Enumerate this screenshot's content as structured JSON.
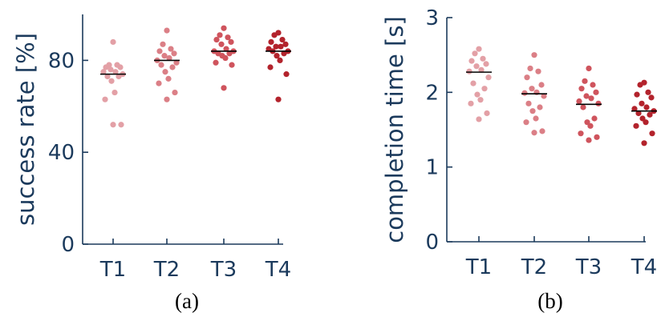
{
  "colors": {
    "axis": "#1b3a5c",
    "median": "#000000",
    "series": [
      "#e3a0a6",
      "#db7f86",
      "#cf545d",
      "#b3232c"
    ]
  },
  "chart_data": [
    {
      "type": "scatter",
      "panel_label": "(a)",
      "categories": [
        "T1",
        "T2",
        "T3",
        "T4"
      ],
      "ylabel": "success rate [%]",
      "ylim": [
        0,
        100
      ],
      "yticks": [
        0,
        40,
        80
      ],
      "grid": false,
      "medians": [
        74,
        80,
        84,
        84
      ],
      "series": [
        {
          "category": "T1",
          "values": [
            88,
            78,
            78,
            77,
            77,
            76,
            75,
            75,
            74,
            73,
            73,
            71,
            66,
            63,
            52,
            52
          ]
        },
        {
          "category": "T2",
          "values": [
            93,
            87,
            85,
            84,
            83,
            82,
            81,
            80,
            79,
            78,
            77,
            75,
            72,
            70,
            66,
            63
          ]
        },
        {
          "category": "T3",
          "values": [
            94,
            91,
            90,
            89,
            88,
            87,
            85,
            84,
            84,
            83,
            83,
            82,
            81,
            79,
            78,
            68
          ]
        },
        {
          "category": "T4",
          "values": [
            92,
            91,
            89,
            88,
            87,
            86,
            86,
            85,
            84,
            84,
            83,
            82,
            80,
            77,
            74,
            63
          ]
        }
      ]
    },
    {
      "type": "scatter",
      "panel_label": "(b)",
      "categories": [
        "T1",
        "T2",
        "T3",
        "T4"
      ],
      "ylabel": "completion time [s]",
      "ylim": [
        0,
        3
      ],
      "yticks": [
        0,
        1,
        2,
        3
      ],
      "grid": false,
      "medians": [
        2.27,
        1.98,
        1.84,
        1.75
      ],
      "series": [
        {
          "category": "T1",
          "values": [
            2.58,
            2.52,
            2.45,
            2.42,
            2.38,
            2.35,
            2.3,
            2.28,
            2.2,
            2.12,
            2.05,
            1.97,
            1.9,
            1.85,
            1.72,
            1.64
          ]
        },
        {
          "category": "T2",
          "values": [
            2.5,
            2.32,
            2.28,
            2.2,
            2.1,
            2.05,
            2.0,
            1.99,
            1.95,
            1.85,
            1.8,
            1.75,
            1.65,
            1.6,
            1.48,
            1.46
          ]
        },
        {
          "category": "T3",
          "values": [
            2.32,
            2.15,
            2.1,
            2.05,
            2.0,
            1.95,
            1.92,
            1.88,
            1.85,
            1.8,
            1.65,
            1.6,
            1.55,
            1.45,
            1.4,
            1.36
          ]
        },
        {
          "category": "T4",
          "values": [
            2.13,
            2.1,
            2.0,
            1.97,
            1.93,
            1.85,
            1.8,
            1.78,
            1.75,
            1.72,
            1.7,
            1.65,
            1.6,
            1.55,
            1.45,
            1.32
          ]
        }
      ]
    }
  ]
}
